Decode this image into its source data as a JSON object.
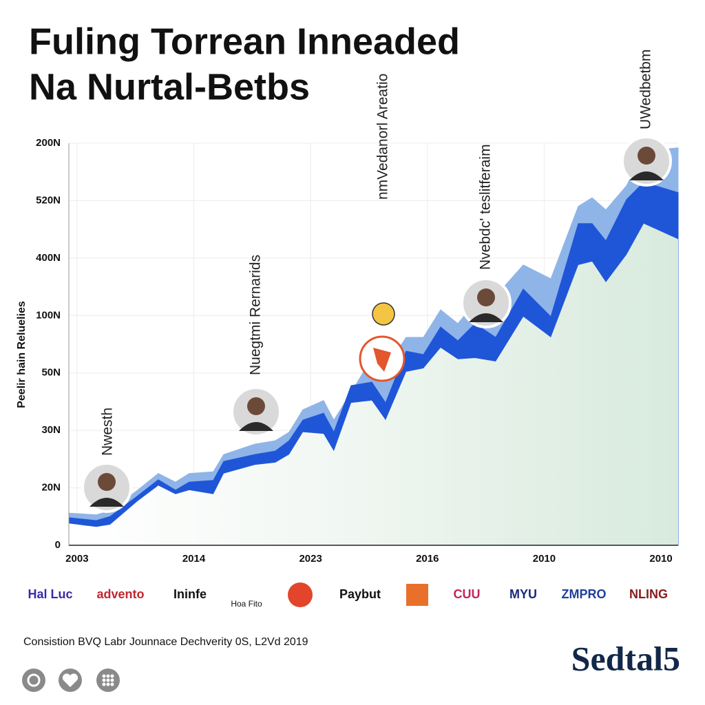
{
  "chart_data": {
    "type": "area",
    "title": [
      "Fuling Torrean Inneaded",
      "Na Nurtal-Betbs"
    ],
    "y_label": "Peelir hain Reluelies",
    "x": [
      -7,
      16.5,
      28.3,
      51.9,
      69.6,
      84.3,
      96.1,
      116.7,
      125.6,
      152.1,
      169.8,
      181.6,
      193.4,
      211.1,
      219.9,
      234.7,
      252.4,
      264.2,
      281.8,
      296.6,
      311.3,
      326.1,
      340.8,
      358.5,
      382.1,
      405.7,
      429.2,
      441.0,
      452.8,
      470.5,
      485.2,
      514.7
    ],
    "series": [
      {
        "color": "#8fb4e8",
        "values": [
          56,
          53,
          60,
          96,
          125,
          110,
          125,
          128,
          158,
          176,
          182,
          197,
          236,
          252,
          218,
          266,
          326,
          308,
          362,
          362,
          410,
          386,
          422,
          434,
          488,
          464,
          590,
          605,
          584,
          626,
          686,
          692
        ]
      },
      {
        "color": "#1f56d8",
        "values": [
          48,
          43,
          50,
          86,
          114,
          96,
          110,
          113,
          146,
          158,
          164,
          182,
          218,
          230,
          197,
          278,
          284,
          248,
          338,
          332,
          380,
          356,
          386,
          362,
          446,
          398,
          560,
          560,
          530,
          602,
          632,
          614
        ]
      },
      {
        "color": "#e3f0e6",
        "values": [
          38,
          32,
          36,
          77,
          104,
          89,
          96,
          89,
          125,
          140,
          144,
          158,
          197,
          194,
          164,
          248,
          252,
          218,
          302,
          308,
          344,
          324,
          326,
          320,
          398,
          362,
          488,
          494,
          458,
          506,
          560,
          533
        ]
      }
    ],
    "xlim": [
      -7,
      514.7
    ],
    "xticks": [
      {
        "value": 0,
        "label": "2003"
      },
      {
        "value": 100,
        "label": "2014"
      },
      {
        "value": 200,
        "label": "2023"
      },
      {
        "value": 300,
        "label": "2016"
      },
      {
        "value": 400,
        "label": "2010"
      },
      {
        "value": 500,
        "label": "2010"
      }
    ],
    "ylim": [
      0,
      700
    ],
    "yticks": [
      0,
      {
        "value": 100,
        "label": "20N"
      },
      {
        "value": 200,
        "label": "30N"
      },
      {
        "value": 300,
        "label": "50N"
      },
      {
        "value": 400,
        "label": "100N"
      },
      {
        "value": 500,
        "label": "400N"
      },
      {
        "value": 600,
        "label": "520N"
      },
      {
        "value": 700,
        "label": "200N"
      }
    ],
    "grid": true,
    "annotations": [
      "Nwesth",
      "Nuegtmi Rernarids",
      "nmVedanorl Areatio",
      "Nvebdc' teslitferaim",
      "UWedbetbm"
    ]
  },
  "logos": [
    "Hal Luc",
    "advento",
    "Ininfe",
    "Hoa Fito",
    "Paybut",
    "CUU",
    "MYU",
    "ZMPRO",
    "NLING"
  ],
  "footer": "Consistion BVQ Labr Jounnace Dechverity 0S, L2Vd 2019",
  "brand": "Sedtal5"
}
